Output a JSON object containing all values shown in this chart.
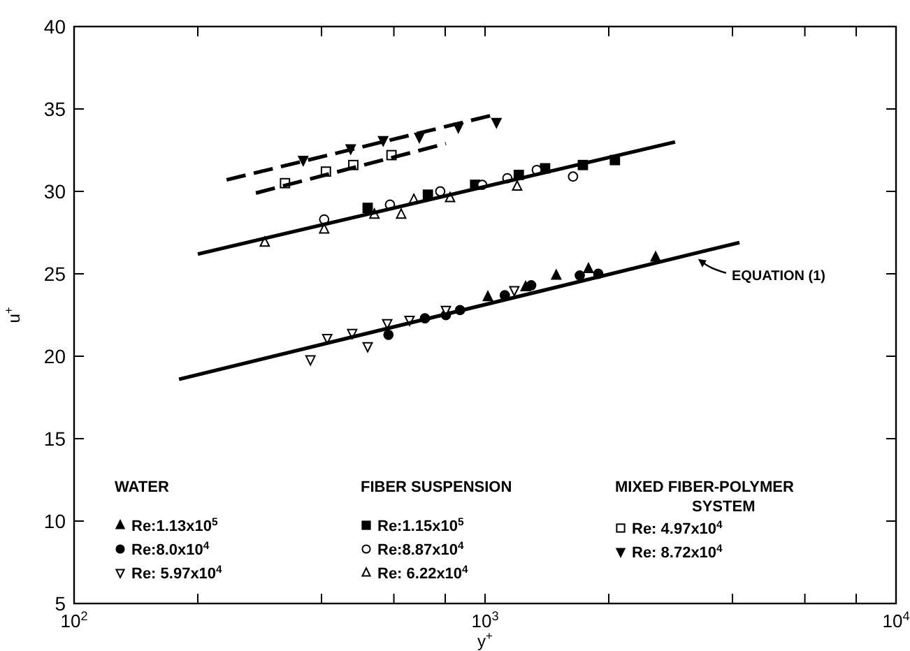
{
  "chart_data": {
    "type": "scatter",
    "xlabel": "y$^{+}$",
    "ylabel": "u$^{+}$",
    "log": "x",
    "grid": false,
    "legend": "bottom",
    "xlim": [
      100,
      10000
    ],
    "ylim": [
      5,
      40
    ],
    "xticks": [
      {
        "value": 100,
        "label": "10$^{2}$"
      },
      {
        "value": 200,
        "label": null
      },
      {
        "value": 400,
        "label": null
      },
      {
        "value": 600,
        "label": null
      },
      {
        "value": 800,
        "label": null
      },
      {
        "value": 1000,
        "label": "10$^{3}$"
      },
      {
        "value": 2000,
        "label": null
      },
      {
        "value": 4000,
        "label": null
      },
      {
        "value": 6000,
        "label": null
      },
      {
        "value": 8000,
        "label": null
      },
      {
        "value": 10000,
        "label": "10$^{4}$"
      }
    ],
    "yticks": [
      5,
      10,
      15,
      20,
      25,
      30,
      35,
      40
    ],
    "annotations": [
      {
        "text": "EQUATION (1)",
        "x": 3300,
        "y": 25.9
      },
      "WATER",
      "FIBER SUSPENSION",
      "MIXED FIBER-POLYMER SYSTEM"
    ],
    "series": [
      {
        "name": "Re:1.13x10$^{5}$",
        "color": "#000000",
        "marker": "triangle",
        "x": [
          1016,
          1255,
          1490,
          1785,
          2600
        ],
        "values": [
          23.6,
          24.2,
          24.9,
          25.3,
          26.0
        ]
      },
      {
        "name": "Re:8.0x10$^{4}$",
        "color": "#000000",
        "marker": "circle",
        "x": [
          582,
          714,
          803,
          869,
          1117,
          1295,
          1700,
          1886
        ],
        "values": [
          21.3,
          22.3,
          22.5,
          22.8,
          23.7,
          24.3,
          24.9,
          25.0
        ]
      },
      {
        "name": "Re: 5.97x10$^{4}$",
        "color": "#000000",
        "marker": "triangle-down-open",
        "x": [
          376,
          413,
          475,
          518,
          578,
          655,
          803,
          1178
        ],
        "values": [
          19.8,
          21.1,
          21.4,
          20.6,
          22.0,
          22.2,
          22.8,
          24.0
        ]
      },
      {
        "name": "Re:1.15x10$^{5}$",
        "color": "#000000",
        "marker": "square",
        "x": [
          518,
          726,
          946,
          1208,
          1400,
          1730,
          2070
        ],
        "values": [
          29.0,
          29.8,
          30.4,
          31.0,
          31.4,
          31.6,
          31.9
        ]
      },
      {
        "name": "Re:8.87x10$^{4}$",
        "color": "#000000",
        "marker": "circle-open",
        "x": [
          406,
          587,
          778,
          984,
          1133,
          1336,
          1637
        ],
        "values": [
          28.3,
          29.2,
          30.0,
          30.4,
          30.8,
          31.3,
          30.9
        ]
      },
      {
        "name": "Re: 6.22x10$^{4}$",
        "color": "#000000",
        "marker": "triangle-open",
        "x": [
          291,
          406,
          538,
          625,
          671,
          822,
          1197
        ],
        "values": [
          26.9,
          27.7,
          28.6,
          28.6,
          29.5,
          29.6,
          30.3
        ]
      },
      {
        "name": "Re: 4.97x10$^{4}$",
        "color": "#000000",
        "marker": "square-open",
        "x": [
          326,
          410,
          478,
          592
        ],
        "values": [
          30.5,
          31.2,
          31.6,
          32.2
        ]
      },
      {
        "name": "Re: 8.72x10$^{4}$",
        "color": "#000000",
        "marker": "triangle-down",
        "x": [
          361,
          471,
          565,
          692,
          861,
          1066
        ],
        "values": [
          31.9,
          32.6,
          33.1,
          33.3,
          33.9,
          34.2
        ]
      },
      {
        "type": "line",
        "color": "#000000",
        "line_style": "solid",
        "marker": "none",
        "x": [
          180,
          4160
        ],
        "values": [
          18.6,
          26.9
        ]
      },
      {
        "type": "line",
        "color": "#000000",
        "line_style": "solid",
        "marker": "none",
        "x": [
          200,
          2900
        ],
        "values": [
          26.2,
          33.0
        ]
      },
      {
        "type": "line",
        "color": "#000000",
        "line_style": "dashed",
        "marker": "none",
        "x": [
          235,
          1074
        ],
        "values": [
          30.7,
          34.7
        ]
      },
      {
        "type": "line",
        "color": "#000000",
        "line_style": "dashed",
        "marker": "none",
        "x": [
          277,
          803
        ],
        "values": [
          29.9,
          32.9
        ]
      }
    ]
  }
}
